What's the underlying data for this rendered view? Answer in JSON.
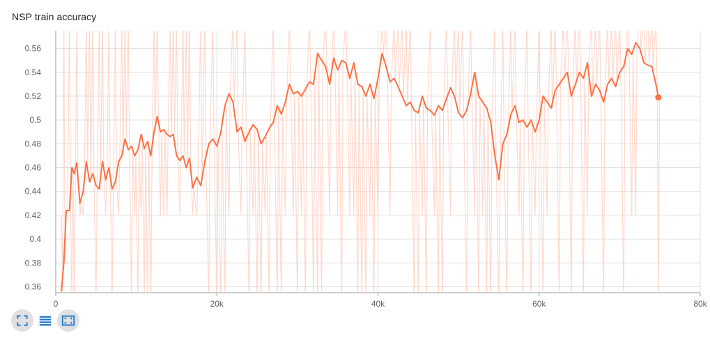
{
  "title": "NSP train accuracy",
  "colors": {
    "line": "#ff7043",
    "raw": "#ffccbc",
    "grid": "#e0e0e0",
    "axis": "#9e9e9e",
    "icon": "#1976d2"
  },
  "toolbar": [
    {
      "icon": "fullscreen-icon",
      "active": true
    },
    {
      "icon": "toggle-log-scale-icon",
      "active": false
    },
    {
      "icon": "fit-domain-icon",
      "active": true
    }
  ],
  "chart_data": {
    "type": "line",
    "title": "NSP train accuracy",
    "xlabel": "",
    "ylabel": "",
    "xlim": [
      0,
      80000
    ],
    "ylim": [
      0.355,
      0.575
    ],
    "x_ticks": [
      0,
      20000,
      40000,
      60000,
      80000
    ],
    "x_tick_labels": [
      "0",
      "20k",
      "40k",
      "60k",
      "80k"
    ],
    "y_ticks": [
      0.36,
      0.38,
      0.4,
      0.42,
      0.44,
      0.46,
      0.48,
      0.5,
      0.52,
      0.54,
      0.56
    ],
    "y_tick_labels": [
      "0.36",
      "0.38",
      "0.4",
      "0.42",
      "0.44",
      "0.46",
      "0.48",
      "0.5",
      "0.52",
      "0.54",
      "0.56"
    ],
    "grid": true,
    "last_value": 0.519,
    "series": [
      {
        "smoothed": true,
        "x": [
          700,
          1000,
          1300,
          1700,
          2000,
          2300,
          2600,
          3000,
          3400,
          3800,
          4200,
          4600,
          5000,
          5400,
          5800,
          6200,
          6600,
          7000,
          7400,
          7800,
          8200,
          8600,
          9000,
          9400,
          9800,
          10200,
          10600,
          11000,
          11400,
          11800,
          12200,
          12600,
          13000,
          13400,
          13800,
          14200,
          14600,
          15000,
          15400,
          15800,
          16200,
          16600,
          17000,
          17500,
          18000,
          18500,
          19000,
          19500,
          20000,
          20500,
          21000,
          21500,
          22000,
          22500,
          23000,
          23500,
          24000,
          24500,
          25000,
          25500,
          26000,
          26500,
          27000,
          27500,
          28000,
          28500,
          29000,
          29500,
          30000,
          30500,
          31000,
          31500,
          32000,
          32500,
          33000,
          33500,
          34000,
          34500,
          35000,
          35500,
          36000,
          36500,
          37000,
          37500,
          38000,
          38500,
          39000,
          39500,
          40000,
          40500,
          41000,
          41500,
          42000,
          42500,
          43000,
          43500,
          44000,
          44500,
          45000,
          45500,
          46000,
          46500,
          47000,
          47500,
          48000,
          48500,
          49000,
          49500,
          50000,
          50500,
          51000,
          51500,
          52000,
          52500,
          53000,
          53500,
          54000,
          54500,
          55000,
          55500,
          56000,
          56500,
          57000,
          57500,
          58000,
          58500,
          59000,
          59500,
          60000,
          60500,
          61000,
          61500,
          62000,
          62500,
          63000,
          63500,
          64000,
          64500,
          65000,
          65500,
          66000,
          66500,
          67000,
          67500,
          68000,
          68500,
          69000,
          69500,
          70000,
          70500,
          71000,
          71500,
          72000,
          72500,
          73000,
          73500,
          74000,
          74500,
          74800
        ],
        "y": [
          0.356,
          0.38,
          0.424,
          0.424,
          0.46,
          0.455,
          0.464,
          0.43,
          0.44,
          0.465,
          0.448,
          0.455,
          0.445,
          0.442,
          0.465,
          0.45,
          0.46,
          0.442,
          0.448,
          0.465,
          0.47,
          0.484,
          0.475,
          0.478,
          0.47,
          0.475,
          0.488,
          0.476,
          0.482,
          0.47,
          0.49,
          0.503,
          0.49,
          0.492,
          0.488,
          0.486,
          0.488,
          0.47,
          0.466,
          0.47,
          0.46,
          0.468,
          0.443,
          0.452,
          0.445,
          0.465,
          0.48,
          0.484,
          0.478,
          0.49,
          0.512,
          0.522,
          0.515,
          0.49,
          0.494,
          0.482,
          0.49,
          0.496,
          0.492,
          0.48,
          0.486,
          0.493,
          0.498,
          0.512,
          0.505,
          0.515,
          0.53,
          0.522,
          0.524,
          0.52,
          0.526,
          0.532,
          0.53,
          0.556,
          0.55,
          0.545,
          0.53,
          0.552,
          0.542,
          0.55,
          0.548,
          0.535,
          0.548,
          0.53,
          0.528,
          0.52,
          0.53,
          0.518,
          0.535,
          0.556,
          0.545,
          0.532,
          0.535,
          0.528,
          0.52,
          0.512,
          0.515,
          0.508,
          0.506,
          0.52,
          0.51,
          0.508,
          0.504,
          0.512,
          0.508,
          0.518,
          0.527,
          0.52,
          0.506,
          0.502,
          0.508,
          0.522,
          0.54,
          0.52,
          0.515,
          0.51,
          0.498,
          0.47,
          0.45,
          0.48,
          0.488,
          0.505,
          0.512,
          0.498,
          0.5,
          0.494,
          0.5,
          0.49,
          0.5,
          0.52,
          0.515,
          0.51,
          0.525,
          0.53,
          0.535,
          0.54,
          0.52,
          0.53,
          0.54,
          0.535,
          0.548,
          0.52,
          0.53,
          0.525,
          0.515,
          0.53,
          0.535,
          0.528,
          0.54,
          0.545,
          0.56,
          0.555,
          0.565,
          0.56,
          0.548,
          0.546,
          0.545,
          0.53,
          0.519
        ]
      }
    ]
  }
}
